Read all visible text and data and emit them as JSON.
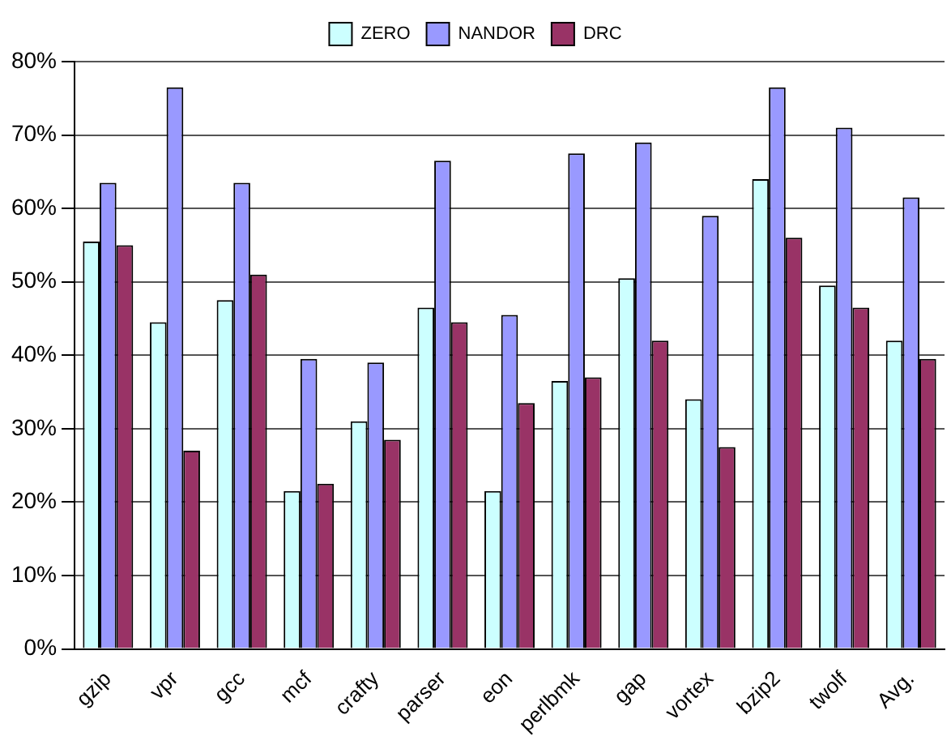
{
  "chart_data": {
    "type": "bar",
    "categories": [
      "gzip",
      "vpr",
      "gcc",
      "mcf",
      "crafty",
      "parser",
      "eon",
      "perlbmk",
      "gap",
      "vortex",
      "bzip2",
      "twolf",
      "Avg."
    ],
    "series": [
      {
        "name": "ZERO",
        "color": "#ccffff",
        "values": [
          55.5,
          44.5,
          47.5,
          21.5,
          31,
          46.5,
          21.5,
          36.5,
          50.5,
          34,
          64,
          49.5,
          42
        ]
      },
      {
        "name": "NANDOR",
        "color": "#9999ff",
        "values": [
          63.5,
          76.5,
          63.5,
          39.5,
          39,
          66.5,
          45.5,
          67.5,
          69,
          59,
          76.5,
          71,
          61.5
        ]
      },
      {
        "name": "DRC",
        "color": "#993366",
        "values": [
          55,
          27,
          51,
          22.5,
          28.5,
          44.5,
          33.5,
          37,
          42,
          27.5,
          56,
          46.5,
          39.5
        ]
      }
    ],
    "ylim": [
      0,
      80
    ],
    "yticks": [
      {
        "value": 0,
        "label": "0%"
      },
      {
        "value": 10,
        "label": "10%"
      },
      {
        "value": 20,
        "label": "20%"
      },
      {
        "value": 30,
        "label": "30%"
      },
      {
        "value": 40,
        "label": "40%"
      },
      {
        "value": 50,
        "label": "50%"
      },
      {
        "value": 60,
        "label": "60%"
      },
      {
        "value": 70,
        "label": "70%"
      },
      {
        "value": 80,
        "label": "80%"
      }
    ],
    "grid": "y",
    "legend": "top"
  }
}
